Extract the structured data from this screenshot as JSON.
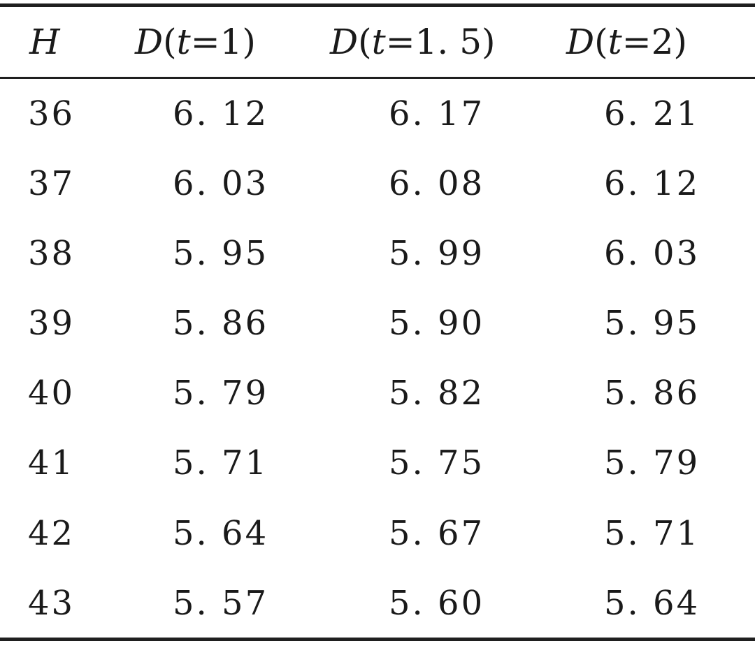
{
  "table": {
    "headers": [
      {
        "var": "H",
        "arg": ""
      },
      {
        "var": "D",
        "arg": "(t=1)"
      },
      {
        "var": "D",
        "arg": "(t=1.5)"
      },
      {
        "var": "D",
        "arg": "(t=2)"
      }
    ],
    "header_text": {
      "h0": "H",
      "h1_var": "D",
      "h1_open": "(",
      "h1_t": "t",
      "h1_rest": "=1)",
      "h2_var": "D",
      "h2_open": "(",
      "h2_t": "t",
      "h2_rest": "=1. 5)",
      "h3_var": "D",
      "h3_open": "(",
      "h3_t": "t",
      "h3_rest": "=2)"
    },
    "rows": [
      [
        "36",
        "6. 12",
        "6. 17",
        "6. 21"
      ],
      [
        "37",
        "6. 03",
        "6. 08",
        "6. 12"
      ],
      [
        "38",
        "5. 95",
        "5. 99",
        "6. 03"
      ],
      [
        "39",
        "5. 86",
        "5. 90",
        "5. 95"
      ],
      [
        "40",
        "5. 79",
        "5. 82",
        "5. 86"
      ],
      [
        "41",
        "5. 71",
        "5. 75",
        "5. 79"
      ],
      [
        "42",
        "5. 64",
        "5. 67",
        "5. 71"
      ],
      [
        "43",
        "5. 57",
        "5. 60",
        "5. 64"
      ]
    ]
  }
}
